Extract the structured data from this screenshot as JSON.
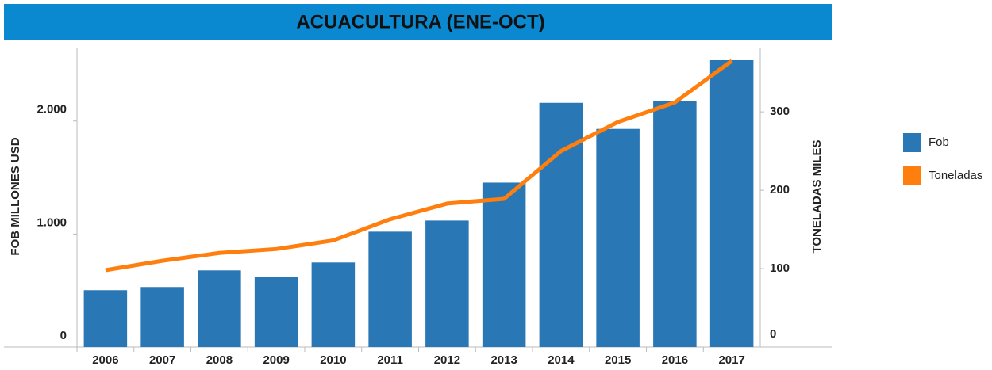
{
  "chart_data": {
    "type": "bar_line",
    "title": "ACUACULTURA (ENE-OCT)",
    "ylabel": "FOB MILLONES USD",
    "y2label": "TONELADAS MILES",
    "categories": [
      "2006",
      "2007",
      "2008",
      "2009",
      "2010",
      "2011",
      "2012",
      "2013",
      "2014",
      "2015",
      "2016",
      "2017"
    ],
    "series": [
      {
        "name": "Fob",
        "color": "#2a77b5",
        "type": "bar",
        "values": [
          503,
          531,
          678,
          622,
          748,
          1021,
          1119,
          1455,
          2161,
          1930,
          2175,
          2538
        ]
      },
      {
        "name": "Toneladas",
        "color": "#ff7f0e",
        "type": "line",
        "axis": "y2",
        "values": [
          98,
          110,
          120,
          125,
          136,
          163,
          183,
          189,
          250,
          287,
          312,
          365
        ]
      }
    ],
    "ylim": [
      0,
      2650
    ],
    "yticks": [
      0,
      {
        "value": 1000,
        "label": "1.000"
      },
      {
        "value": 2000,
        "label": "2.000"
      }
    ],
    "y2lim": [
      0,
      382
    ],
    "y2ticks": [
      0,
      100,
      200,
      300
    ],
    "legend": "right"
  }
}
